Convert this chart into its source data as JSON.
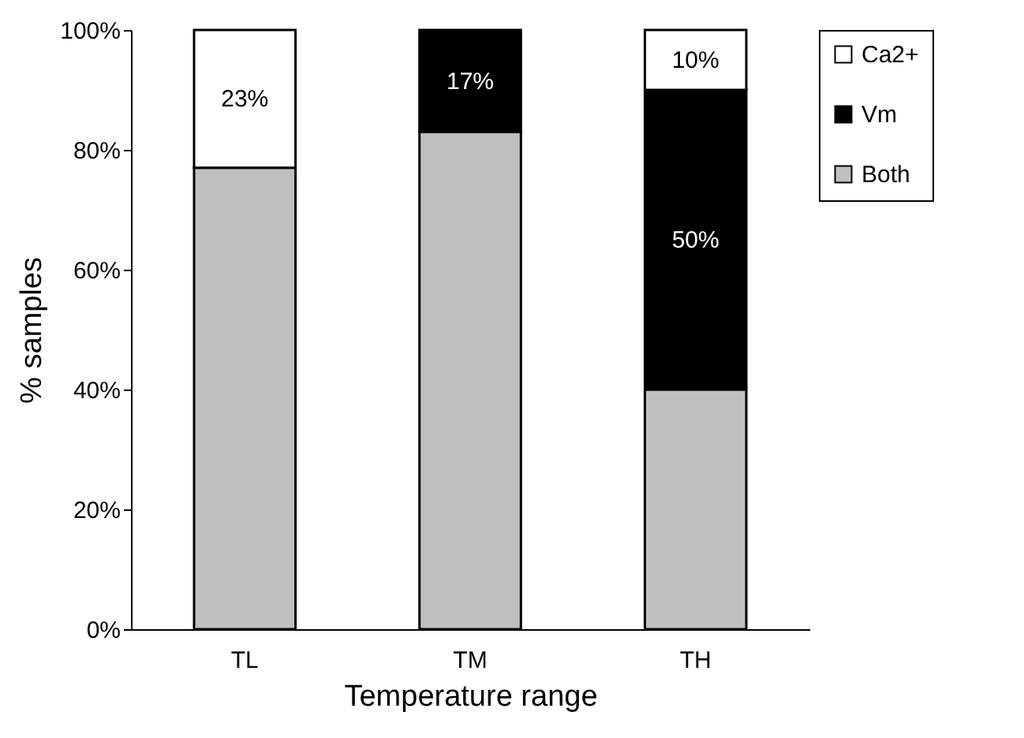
{
  "chart_data": {
    "type": "bar",
    "stacked": true,
    "xlabel": "Temperature range",
    "ylabel": "% samples",
    "categories": [
      "TL",
      "TM",
      "TH"
    ],
    "series": [
      {
        "name": "Both",
        "color": "#c0c0c0",
        "values": [
          77,
          83,
          40
        ],
        "value_labels": [
          null,
          null,
          null
        ]
      },
      {
        "name": "Vm",
        "color": "#000000",
        "values": [
          null,
          17,
          50
        ],
        "value_labels": [
          null,
          "17%",
          "50%"
        ]
      },
      {
        "name": "Ca2+",
        "color": "#ffffff",
        "values": [
          23,
          null,
          10
        ],
        "value_labels": [
          "23%",
          null,
          "10%"
        ]
      }
    ],
    "ylim": [
      0,
      100
    ],
    "yticks": [
      {
        "value": 0,
        "label": "0%"
      },
      {
        "value": 20,
        "label": "20%"
      },
      {
        "value": 40,
        "label": "40%"
      },
      {
        "value": 60,
        "label": "60%"
      },
      {
        "value": 80,
        "label": "80%"
      },
      {
        "value": 100,
        "label": "100%"
      }
    ],
    "legend": "right"
  }
}
